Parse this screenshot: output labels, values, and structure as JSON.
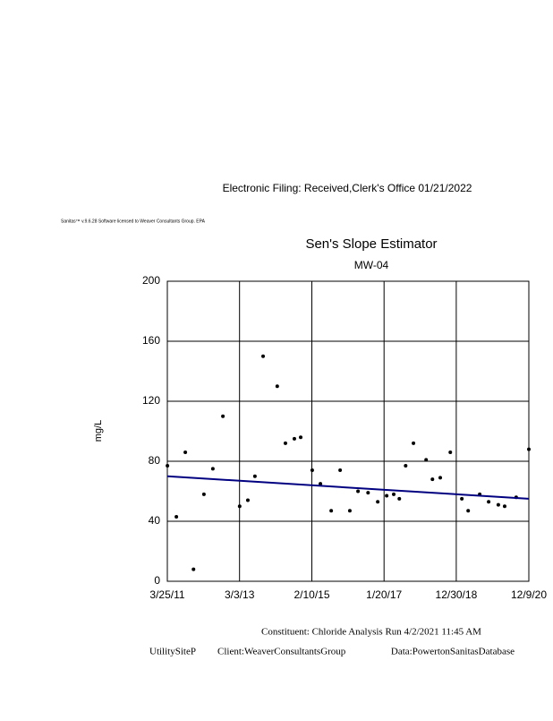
{
  "header": {
    "filing": "Electronic Filing: Received,Clerk's Office 01/21/2022",
    "software": "Sanitas™ v.9.6.28 Software licensed to Weaver Consultants Group. EPA"
  },
  "chart_data": {
    "type": "scatter",
    "title": "Sen's Slope Estimator",
    "subtitle": "MW-04",
    "y_label": "mg/L",
    "xlim": [
      2011.227,
      2020.94
    ],
    "xticks": [
      {
        "value": 2011.227,
        "label": "3/25/11"
      },
      {
        "value": 2013.167,
        "label": "3/3/13"
      },
      {
        "value": 2015.11,
        "label": "2/10/15"
      },
      {
        "value": 2017.05,
        "label": "1/20/17"
      },
      {
        "value": 2018.99,
        "label": "12/30/18"
      },
      {
        "value": 2020.94,
        "label": "12/9/20"
      }
    ],
    "ylim": [
      0,
      200
    ],
    "yticks": [
      0,
      40,
      80,
      120,
      160,
      200
    ],
    "grid": true,
    "series": [
      {
        "color": "#000000",
        "x": [
          2011.23,
          2011.47,
          2011.71,
          2011.93,
          2012.21,
          2012.45,
          2012.72,
          2013.17,
          2013.39,
          2013.58,
          2013.8,
          2014.18,
          2014.4,
          2014.64,
          2014.81,
          2015.12,
          2015.34,
          2015.63,
          2015.87,
          2016.13,
          2016.35,
          2016.62,
          2016.88,
          2017.12,
          2017.31,
          2017.46,
          2017.63,
          2017.84,
          2018.18,
          2018.35,
          2018.56,
          2018.83,
          2019.14,
          2019.31,
          2019.62,
          2019.86,
          2020.12,
          2020.29,
          2020.6,
          2020.94
        ],
        "values": [
          77,
          43,
          86,
          8,
          58,
          75,
          110,
          50,
          54,
          70,
          150,
          130,
          92,
          95,
          96,
          74,
          65,
          47,
          74,
          47,
          60,
          59,
          53,
          57,
          58,
          55,
          77,
          92,
          81,
          68,
          69,
          86,
          55,
          47,
          58,
          53,
          51,
          50,
          56,
          88
        ]
      },
      {
        "color": "#000080",
        "x": [
          2011.227,
          2020.94
        ],
        "values": [
          70,
          55
        ]
      }
    ]
  },
  "footer": {
    "run": "Constituent: Chloride Analysis Run 4/2/2021 11:45 AM",
    "site": "UtilitySiteP",
    "client": "Client:WeaverConsultantsGroup",
    "data": "Data:PowertonSanitasDatabase"
  }
}
